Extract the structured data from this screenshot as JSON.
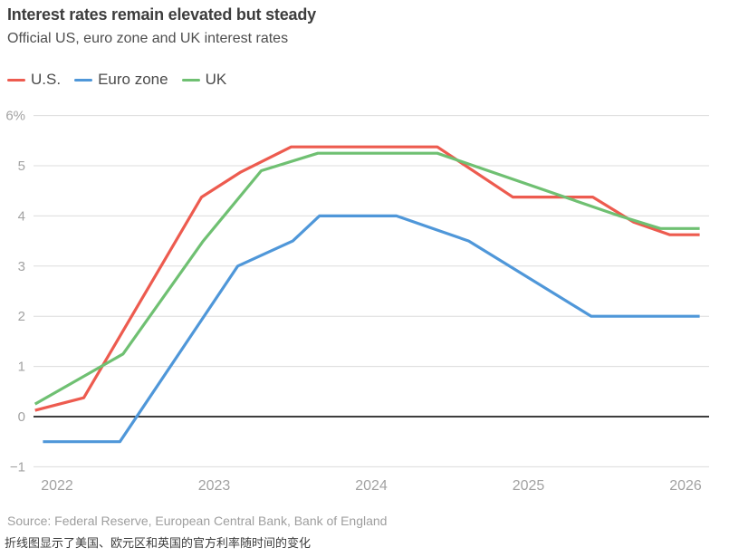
{
  "header": {
    "title": "Interest rates remain elevated but steady",
    "subtitle": "Official US, euro zone and UK interest rates"
  },
  "legend": [
    {
      "id": "us",
      "label": "U.S.",
      "color": "#ed5b4f"
    },
    {
      "id": "euro-zone",
      "label": "Euro zone",
      "color": "#4f97d9"
    },
    {
      "id": "uk",
      "label": "UK",
      "color": "#6fc072"
    }
  ],
  "chart_data": {
    "type": "line",
    "title": "Interest rates remain elevated but steady",
    "subtitle": "Official US, euro zone and UK interest rates",
    "unit": "percent",
    "grid": true,
    "legend_position": "top-left",
    "xlim": [
      2021.85,
      2026.15
    ],
    "ylim": [
      -1,
      6
    ],
    "x_ticks": [
      2022,
      2023,
      2024,
      2025,
      2026
    ],
    "y_ticks": [
      {
        "value": 6,
        "label": "6%"
      },
      {
        "value": 5,
        "label": "5"
      },
      {
        "value": 4,
        "label": "4"
      },
      {
        "value": 3,
        "label": "3"
      },
      {
        "value": 2,
        "label": "2"
      },
      {
        "value": 1,
        "label": "1"
      },
      {
        "value": 0,
        "label": "0"
      },
      {
        "value": -1,
        "label": "−1"
      }
    ],
    "baseline": 0,
    "series": [
      {
        "id": "us",
        "name": "U.S.",
        "color": "#ed5b4f",
        "points": [
          [
            2021.86,
            0.125
          ],
          [
            2022.17,
            0.375
          ],
          [
            2022.92,
            4.375
          ],
          [
            2023.17,
            4.875
          ],
          [
            2023.49,
            5.375
          ],
          [
            2024.42,
            5.375
          ],
          [
            2024.9,
            4.375
          ],
          [
            2025.41,
            4.375
          ],
          [
            2025.67,
            3.875
          ],
          [
            2025.9,
            3.625
          ],
          [
            2026.09,
            3.625
          ]
        ]
      },
      {
        "id": "euro-zone",
        "name": "Euro zone",
        "color": "#4f97d9",
        "points": [
          [
            2021.91,
            -0.5
          ],
          [
            2022.4,
            -0.5
          ],
          [
            2023.15,
            3.0
          ],
          [
            2023.5,
            3.5
          ],
          [
            2023.67,
            4.0
          ],
          [
            2024.16,
            4.0
          ],
          [
            2024.62,
            3.5
          ],
          [
            2025.4,
            2.0
          ],
          [
            2026.09,
            2.0
          ]
        ]
      },
      {
        "id": "uk",
        "name": "UK",
        "color": "#6fc072",
        "points": [
          [
            2021.86,
            0.25
          ],
          [
            2022.42,
            1.25
          ],
          [
            2022.93,
            3.5
          ],
          [
            2023.3,
            4.9
          ],
          [
            2023.66,
            5.25
          ],
          [
            2024.42,
            5.25
          ],
          [
            2025.58,
            4.0
          ],
          [
            2025.84,
            3.75
          ],
          [
            2026.09,
            3.75
          ]
        ]
      }
    ]
  },
  "footer": {
    "source": "Source: Federal Reserve, European Central Bank, Bank of England",
    "caption_zh": "折线图显示了美国、欧元区和英国的官方利率随时间的变化"
  }
}
